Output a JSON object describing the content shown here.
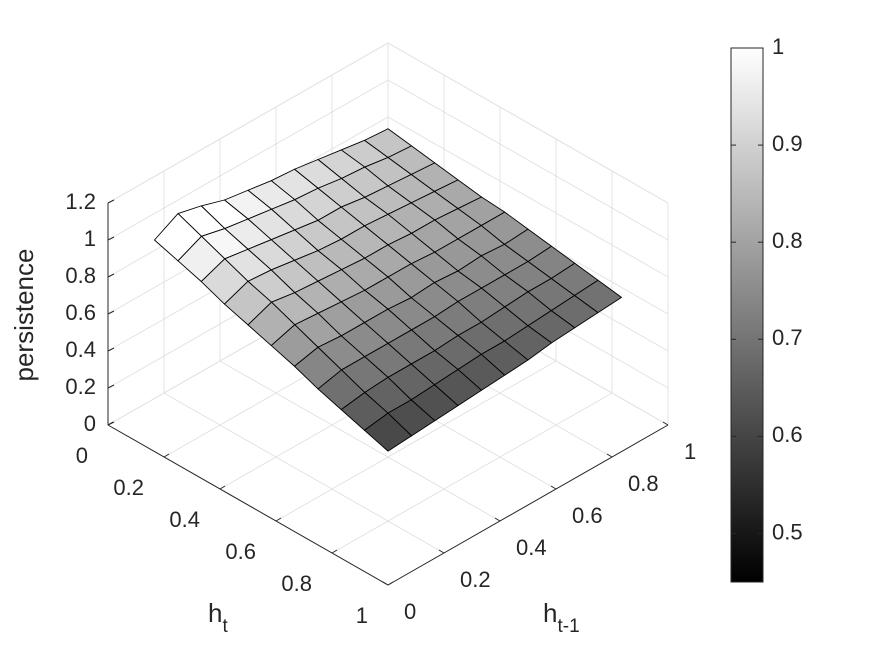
{
  "chart_data": {
    "type": "surface",
    "zlabel": "persistence",
    "xlabel": [
      "h",
      "t"
    ],
    "ylabel": [
      "h",
      "t-1"
    ],
    "x": [
      0.083,
      0.167,
      0.25,
      0.333,
      0.417,
      0.5,
      0.583,
      0.667,
      0.75,
      0.833,
      0.917
    ],
    "y": [
      0.083,
      0.167,
      0.25,
      0.333,
      0.417,
      0.5,
      0.583,
      0.667,
      0.75,
      0.833,
      0.917
    ],
    "z": [
      [
        1.0,
        1.07,
        1.04,
        1.0,
        0.98,
        0.96,
        0.95,
        0.93,
        0.91,
        0.89,
        0.88
      ],
      [
        0.96,
        1.02,
        0.99,
        0.97,
        0.95,
        0.93,
        0.92,
        0.9,
        0.89,
        0.87,
        0.86
      ],
      [
        0.92,
        0.97,
        0.95,
        0.93,
        0.91,
        0.89,
        0.89,
        0.87,
        0.86,
        0.85,
        0.84
      ],
      [
        0.87,
        0.92,
        0.91,
        0.89,
        0.87,
        0.86,
        0.86,
        0.85,
        0.84,
        0.83,
        0.82
      ],
      [
        0.83,
        0.88,
        0.86,
        0.85,
        0.84,
        0.83,
        0.83,
        0.82,
        0.82,
        0.81,
        0.8
      ],
      [
        0.79,
        0.83,
        0.82,
        0.81,
        0.8,
        0.8,
        0.8,
        0.79,
        0.79,
        0.79,
        0.79
      ],
      [
        0.75,
        0.78,
        0.77,
        0.77,
        0.77,
        0.76,
        0.77,
        0.76,
        0.77,
        0.76,
        0.77
      ],
      [
        0.7,
        0.73,
        0.73,
        0.73,
        0.73,
        0.73,
        0.74,
        0.74,
        0.74,
        0.74,
        0.75
      ],
      [
        0.66,
        0.68,
        0.69,
        0.69,
        0.69,
        0.7,
        0.7,
        0.71,
        0.72,
        0.72,
        0.73
      ],
      [
        0.62,
        0.64,
        0.64,
        0.65,
        0.66,
        0.67,
        0.67,
        0.68,
        0.69,
        0.7,
        0.71
      ],
      [
        0.58,
        0.59,
        0.6,
        0.61,
        0.62,
        0.63,
        0.64,
        0.66,
        0.67,
        0.68,
        0.69
      ]
    ],
    "xlim": [
      0,
      1
    ],
    "xticks": [
      0,
      0.2,
      0.4,
      0.6,
      0.8,
      1
    ],
    "ylim": [
      0,
      1
    ],
    "yticks": [
      0,
      0.2,
      0.4,
      0.6,
      0.8,
      1
    ],
    "zlim": [
      0,
      1.2
    ],
    "zticks": [
      0,
      0.2,
      0.4,
      0.6,
      0.8,
      1,
      1.2
    ],
    "grid": true,
    "colormap": "gray",
    "clim": [
      0.45,
      1
    ],
    "colorbar_ticks": [
      0.5,
      0.6,
      0.7,
      0.8,
      0.9,
      1
    ]
  }
}
